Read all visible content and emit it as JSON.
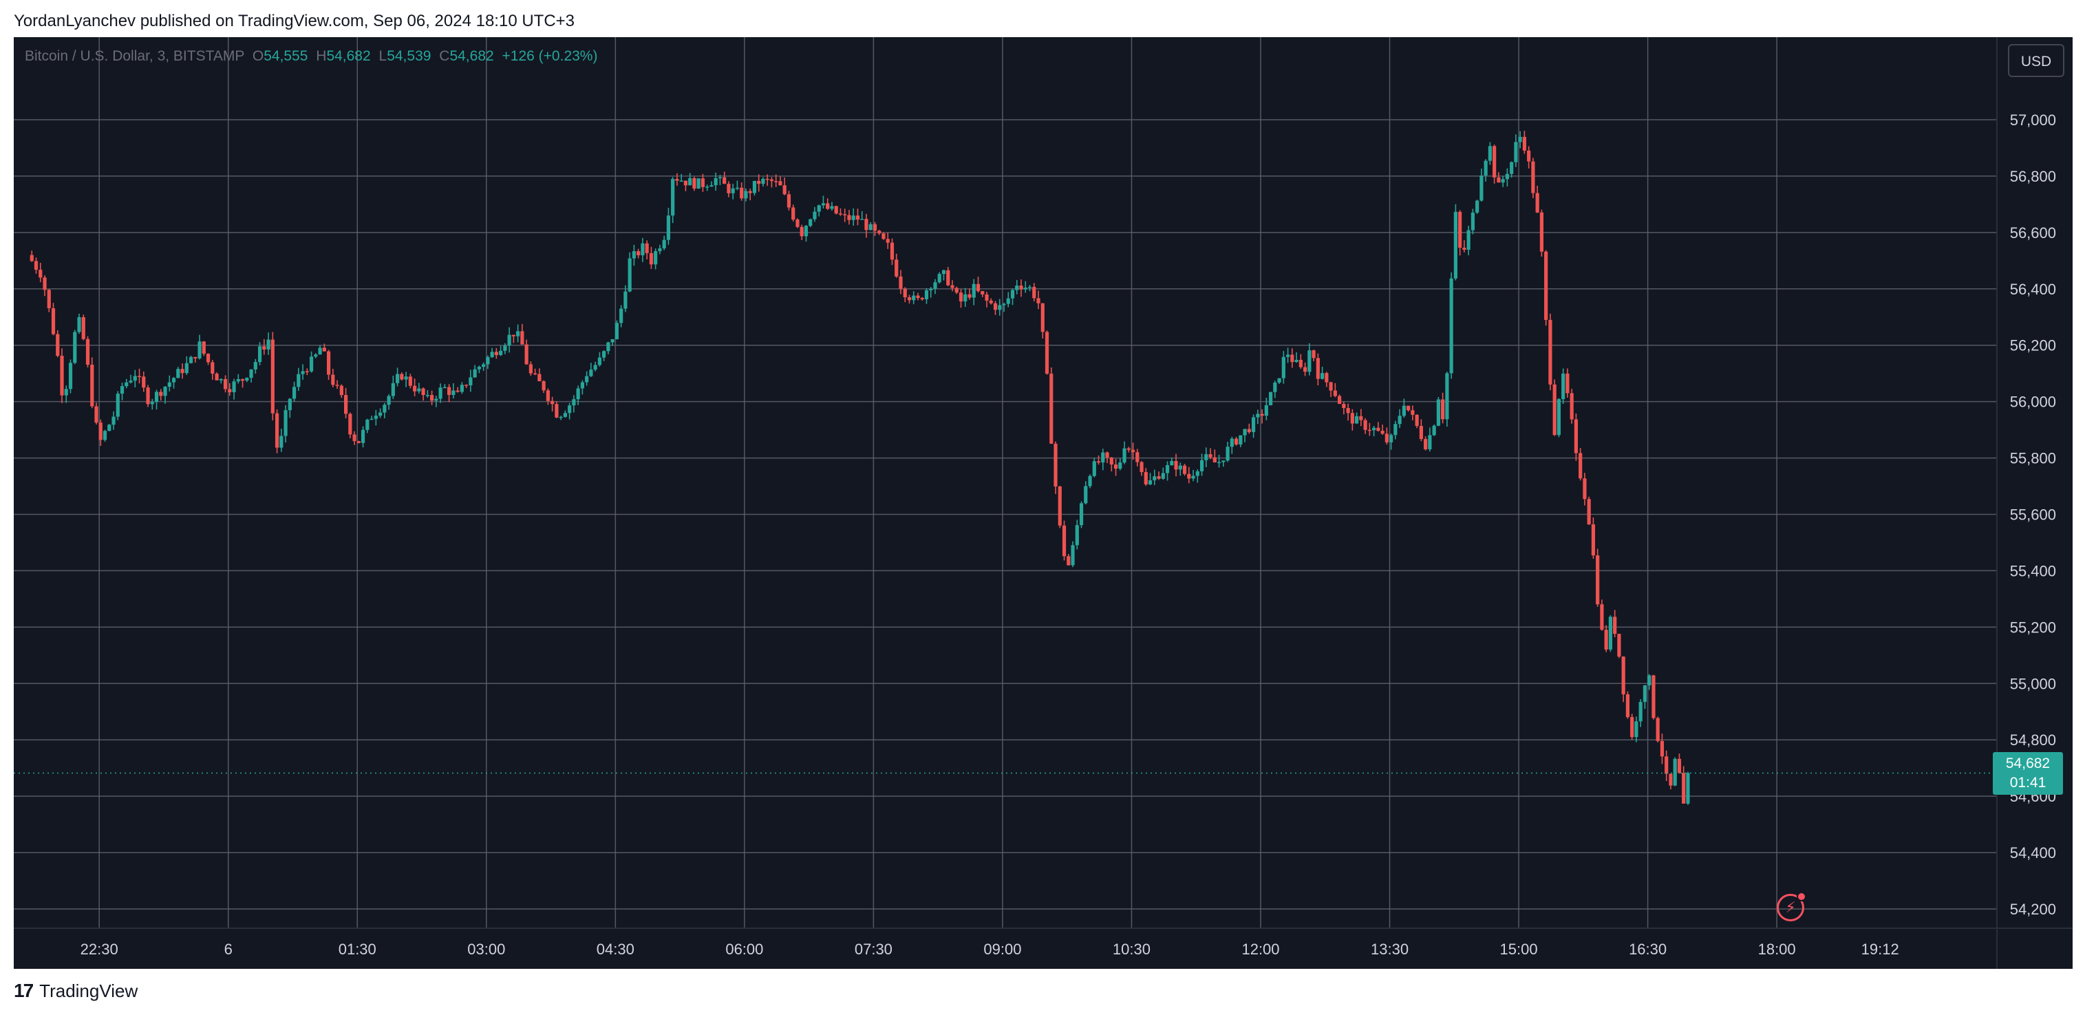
{
  "header": {
    "publisher_line": "YordanLyanchev published on TradingView.com, Sep 06, 2024 18:10 UTC+3"
  },
  "legend": {
    "symbol": "Bitcoin / U.S. Dollar, 3, BITSTAMP",
    "open_label": "O",
    "open": "54,555",
    "high_label": "H",
    "high": "54,682",
    "low_label": "L",
    "low": "54,539",
    "close_label": "C",
    "close": "54,682",
    "change": "+126 (+0.23%)"
  },
  "currency_button": "USD",
  "price_tag": {
    "price": "54,682",
    "countdown": "01:41"
  },
  "footer": {
    "logo": "17",
    "brand": "TradingView"
  },
  "colors": {
    "background": "#131722",
    "up": "#26a69a",
    "down": "#ef5350",
    "grid": "#5d606b",
    "axis_text": "#d1d4dc"
  },
  "icons": {
    "alert": "lightning-bolt-icon"
  },
  "chart_data": {
    "type": "candlestick",
    "title": "Bitcoin / U.S. Dollar, 3, BITSTAMP",
    "ylim": [
      54100,
      57200
    ],
    "y_ticks": [
      54200,
      54400,
      54600,
      54800,
      55000,
      55200,
      55400,
      55600,
      55800,
      56000,
      56200,
      56400,
      56600,
      56800,
      57000
    ],
    "y_tick_labels": [
      "54,200",
      "54,400",
      "54,600",
      "54,800",
      "55,000",
      "55,200",
      "55,400",
      "55,600",
      "55,800",
      "56,000",
      "56,200",
      "56,400",
      "56,600",
      "56,800",
      "57,000"
    ],
    "x_start_minutes": 1300,
    "x_end_minutes": 2595,
    "x_ticks": [
      1350,
      1440,
      1530,
      1620,
      1710,
      1800,
      1890,
      1980,
      2070,
      2160,
      2250,
      2340,
      2430,
      2520,
      2592
    ],
    "x_tick_labels": [
      "22:30",
      "6",
      "01:30",
      "03:00",
      "04:30",
      "06:00",
      "07:30",
      "09:00",
      "10:30",
      "12:00",
      "13:30",
      "15:00",
      "16:30",
      "18:00",
      "19:12"
    ],
    "current_price": 54682,
    "close_path": [
      [
        1300,
        56520
      ],
      [
        1310,
        56450
      ],
      [
        1320,
        56200
      ],
      [
        1325,
        56000
      ],
      [
        1335,
        56300
      ],
      [
        1340,
        56200
      ],
      [
        1345,
        56000
      ],
      [
        1350,
        55850
      ],
      [
        1360,
        55950
      ],
      [
        1365,
        56050
      ],
      [
        1375,
        56100
      ],
      [
        1385,
        56000
      ],
      [
        1395,
        56050
      ],
      [
        1405,
        56100
      ],
      [
        1415,
        56150
      ],
      [
        1420,
        56200
      ],
      [
        1430,
        56100
      ],
      [
        1440,
        56050
      ],
      [
        1450,
        56080
      ],
      [
        1460,
        56150
      ],
      [
        1462,
        56180
      ],
      [
        1468,
        56220
      ],
      [
        1470,
        56000
      ],
      [
        1475,
        55800
      ],
      [
        1478,
        55900
      ],
      [
        1482,
        56000
      ],
      [
        1490,
        56100
      ],
      [
        1500,
        56150
      ],
      [
        1505,
        56200
      ],
      [
        1510,
        56100
      ],
      [
        1520,
        56000
      ],
      [
        1525,
        55900
      ],
      [
        1530,
        55850
      ],
      [
        1540,
        55950
      ],
      [
        1550,
        56000
      ],
      [
        1560,
        56100
      ],
      [
        1570,
        56050
      ],
      [
        1580,
        56000
      ],
      [
        1590,
        56050
      ],
      [
        1600,
        56020
      ],
      [
        1610,
        56100
      ],
      [
        1620,
        56150
      ],
      [
        1630,
        56200
      ],
      [
        1640,
        56250
      ],
      [
        1645,
        56200
      ],
      [
        1650,
        56100
      ],
      [
        1660,
        56050
      ],
      [
        1670,
        55950
      ],
      [
        1680,
        56000
      ],
      [
        1690,
        56100
      ],
      [
        1700,
        56150
      ],
      [
        1710,
        56250
      ],
      [
        1715,
        56350
      ],
      [
        1720,
        56500
      ],
      [
        1730,
        56550
      ],
      [
        1735,
        56500
      ],
      [
        1740,
        56550
      ],
      [
        1745,
        56600
      ],
      [
        1750,
        56800
      ],
      [
        1760,
        56780
      ],
      [
        1770,
        56770
      ],
      [
        1780,
        56790
      ],
      [
        1790,
        56750
      ],
      [
        1800,
        56730
      ],
      [
        1810,
        56780
      ],
      [
        1820,
        56780
      ],
      [
        1825,
        56760
      ],
      [
        1830,
        56700
      ],
      [
        1840,
        56600
      ],
      [
        1850,
        56700
      ],
      [
        1860,
        56680
      ],
      [
        1870,
        56650
      ],
      [
        1880,
        56650
      ],
      [
        1890,
        56600
      ],
      [
        1900,
        56550
      ],
      [
        1910,
        56400
      ],
      [
        1920,
        56350
      ],
      [
        1930,
        56420
      ],
      [
        1940,
        56450
      ],
      [
        1950,
        56350
      ],
      [
        1960,
        56400
      ],
      [
        1970,
        56350
      ],
      [
        1980,
        56330
      ],
      [
        1990,
        56420
      ],
      [
        2000,
        56400
      ],
      [
        2005,
        56350
      ],
      [
        2010,
        56150
      ],
      [
        2015,
        55800
      ],
      [
        2020,
        55550
      ],
      [
        2025,
        55400
      ],
      [
        2030,
        55500
      ],
      [
        2035,
        55650
      ],
      [
        2040,
        55750
      ],
      [
        2050,
        55800
      ],
      [
        2060,
        55750
      ],
      [
        2065,
        55850
      ],
      [
        2075,
        55800
      ],
      [
        2080,
        55700
      ],
      [
        2090,
        55750
      ],
      [
        2100,
        55780
      ],
      [
        2110,
        55730
      ],
      [
        2120,
        55800
      ],
      [
        2130,
        55780
      ],
      [
        2140,
        55850
      ],
      [
        2150,
        55900
      ],
      [
        2160,
        55950
      ],
      [
        2170,
        56050
      ],
      [
        2178,
        56180
      ],
      [
        2182,
        56150
      ],
      [
        2190,
        56100
      ],
      [
        2195,
        56200
      ],
      [
        2200,
        56100
      ],
      [
        2210,
        56050
      ],
      [
        2220,
        55950
      ],
      [
        2230,
        55920
      ],
      [
        2240,
        55900
      ],
      [
        2250,
        55850
      ],
      [
        2260,
        56000
      ],
      [
        2270,
        55900
      ],
      [
        2275,
        55850
      ],
      [
        2280,
        55900
      ],
      [
        2285,
        56050
      ],
      [
        2288,
        55900
      ],
      [
        2292,
        56300
      ],
      [
        2295,
        56700
      ],
      [
        2300,
        56500
      ],
      [
        2305,
        56600
      ],
      [
        2310,
        56700
      ],
      [
        2315,
        56850
      ],
      [
        2320,
        56900
      ],
      [
        2325,
        56750
      ],
      [
        2330,
        56800
      ],
      [
        2335,
        56850
      ],
      [
        2340,
        56950
      ],
      [
        2345,
        56900
      ],
      [
        2350,
        56750
      ],
      [
        2355,
        56600
      ],
      [
        2360,
        56200
      ],
      [
        2365,
        55900
      ],
      [
        2370,
        56100
      ],
      [
        2375,
        56000
      ],
      [
        2380,
        55800
      ],
      [
        2385,
        55700
      ],
      [
        2390,
        55550
      ],
      [
        2395,
        55300
      ],
      [
        2400,
        55100
      ],
      [
        2405,
        55250
      ],
      [
        2410,
        55100
      ],
      [
        2415,
        54900
      ],
      [
        2420,
        54800
      ],
      [
        2425,
        54950
      ],
      [
        2430,
        55050
      ],
      [
        2435,
        54850
      ],
      [
        2440,
        54750
      ],
      [
        2445,
        54600
      ],
      [
        2450,
        54750
      ],
      [
        2455,
        54555
      ],
      [
        2458,
        54682
      ]
    ]
  }
}
